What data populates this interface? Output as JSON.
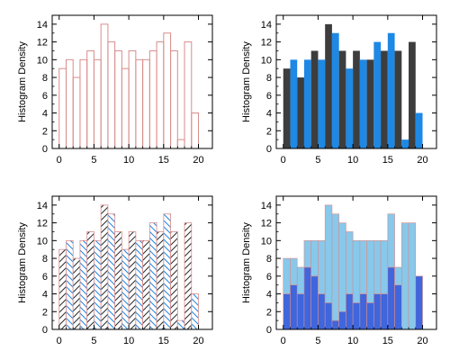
{
  "chart_data": [
    {
      "type": "bar",
      "style": "outline",
      "ylabel": "Histogram Density",
      "xlim": [
        -1,
        22
      ],
      "ylim": [
        0,
        15
      ],
      "xticks": [
        0,
        5,
        10,
        15,
        20
      ],
      "yticks": [
        0,
        2,
        4,
        6,
        8,
        10,
        12,
        14
      ],
      "x": [
        0,
        1,
        2,
        3,
        4,
        5,
        6,
        7,
        8,
        9,
        10,
        11,
        12,
        13,
        14,
        15,
        16,
        17,
        18,
        19,
        20
      ],
      "series": [
        {
          "values": [
            9,
            10,
            8,
            10,
            11,
            10,
            14,
            12,
            11,
            9,
            11,
            10,
            10,
            11,
            12,
            13,
            11,
            1,
            12,
            4,
            0
          ]
        }
      ],
      "colors": [
        "#d98c8c"
      ]
    },
    {
      "type": "bar",
      "style": "interleaved",
      "ylabel": "Histogram Density",
      "xlim": [
        -1,
        22
      ],
      "ylim": [
        0,
        15
      ],
      "xticks": [
        0,
        5,
        10,
        15,
        20
      ],
      "yticks": [
        0,
        2,
        4,
        6,
        8,
        10,
        12,
        14
      ],
      "x": [
        0,
        1,
        2,
        3,
        4,
        5,
        6,
        7,
        8,
        9,
        10,
        11,
        12,
        13,
        14,
        15,
        16,
        17,
        18,
        19,
        20
      ],
      "series": [
        {
          "values": [
            9,
            0,
            8,
            0,
            11,
            0,
            14,
            0,
            11,
            0,
            11,
            0,
            10,
            0,
            11,
            0,
            11,
            0,
            12,
            0,
            0
          ]
        },
        {
          "values": [
            0,
            10,
            0,
            10,
            0,
            10,
            0,
            13,
            0,
            9,
            0,
            10,
            0,
            12,
            0,
            13,
            0,
            1,
            0,
            4,
            0
          ]
        }
      ],
      "colors": [
        "#3d3d3d",
        "#1e88e5"
      ]
    },
    {
      "type": "bar",
      "style": "hatched",
      "ylabel": "Histogram Density",
      "xlim": [
        -1,
        22
      ],
      "ylim": [
        0,
        15
      ],
      "xticks": [
        0,
        5,
        10,
        15,
        20
      ],
      "yticks": [
        0,
        2,
        4,
        6,
        8,
        10,
        12,
        14
      ],
      "x": [
        0,
        1,
        2,
        3,
        4,
        5,
        6,
        7,
        8,
        9,
        10,
        11,
        12,
        13,
        14,
        15,
        16,
        17,
        18,
        19,
        20
      ],
      "series": [
        {
          "values": [
            9,
            0,
            8,
            0,
            11,
            0,
            14,
            0,
            11,
            0,
            11,
            0,
            10,
            0,
            11,
            0,
            11,
            0,
            12,
            0,
            0
          ]
        },
        {
          "values": [
            0,
            10,
            0,
            10,
            0,
            10,
            0,
            13,
            0,
            9,
            0,
            10,
            0,
            12,
            0,
            13,
            0,
            1,
            0,
            4,
            0
          ]
        }
      ],
      "colors": [
        "#2b2b2b",
        "#1e88e5"
      ]
    },
    {
      "type": "bar",
      "style": "stacked",
      "ylabel": "Histogram Density",
      "xlim": [
        -1,
        22
      ],
      "ylim": [
        0,
        15
      ],
      "xticks": [
        0,
        5,
        10,
        15,
        20
      ],
      "yticks": [
        0,
        2,
        4,
        6,
        8,
        10,
        12,
        14
      ],
      "x": [
        0,
        1,
        2,
        3,
        4,
        5,
        6,
        7,
        8,
        9,
        10,
        11,
        12,
        13,
        14,
        15,
        16,
        17,
        18,
        19,
        20
      ],
      "series": [
        {
          "values": [
            4,
            5,
            4,
            7,
            6,
            4,
            3,
            1,
            2,
            4,
            3,
            4,
            3,
            4,
            4,
            7,
            5,
            0,
            0,
            6,
            0
          ]
        },
        {
          "values": [
            4,
            3,
            3,
            3,
            4,
            6,
            11,
            12,
            10,
            7,
            7,
            6,
            7,
            6,
            6,
            6,
            2,
            12,
            12,
            0,
            0
          ]
        }
      ],
      "colors": [
        "#3f66dc",
        "#88c8ea"
      ]
    }
  ]
}
